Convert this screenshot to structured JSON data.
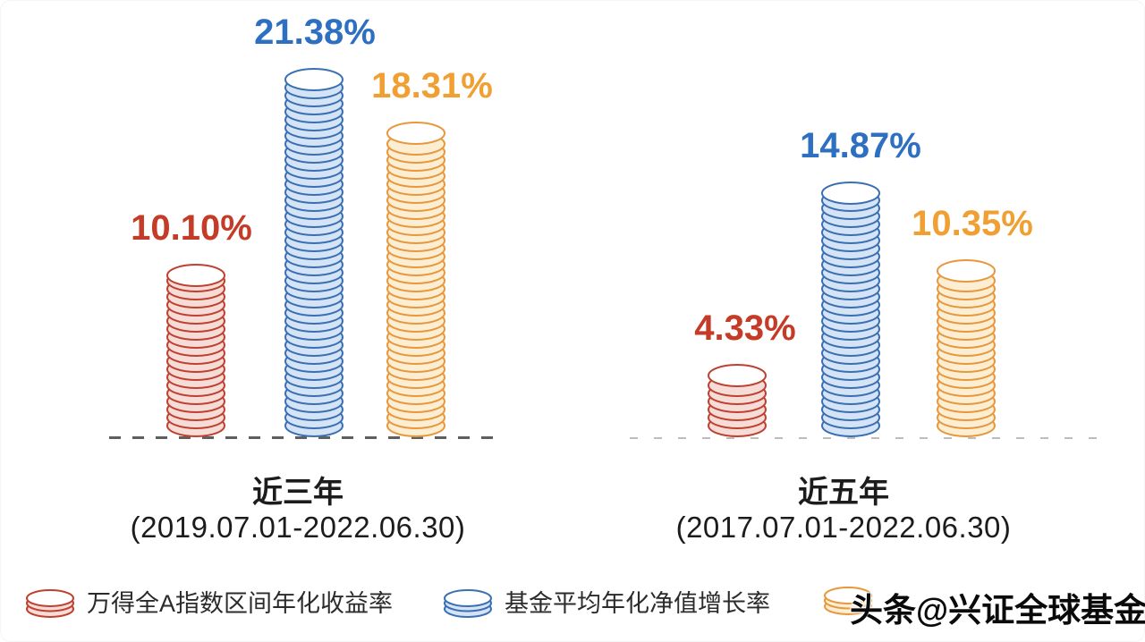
{
  "chart_data": {
    "type": "bar",
    "title": "",
    "unit": "%",
    "legend_position": "bottom",
    "baseline_style": "dashed",
    "grid": false,
    "groups": [
      {
        "label": "近三年",
        "period": "(2019.07.01-2022.06.30)",
        "bars": [
          {
            "series": "万得全A指数区间年化收益率",
            "value": 10.1,
            "display": "10.10%"
          },
          {
            "series": "基金平均年化净值增长率",
            "value": 21.38,
            "display": "21.38%"
          },
          {
            "series": "",
            "value": 18.31,
            "display": "18.31%"
          }
        ]
      },
      {
        "label": "近五年",
        "period": "(2017.07.01-2022.06.30)",
        "bars": [
          {
            "series": "万得全A指数区间年化收益率",
            "value": 4.33,
            "display": "4.33%"
          },
          {
            "series": "基金平均年化净值增长率",
            "value": 14.87,
            "display": "14.87%"
          },
          {
            "series": "",
            "value": 10.35,
            "display": "10.35%"
          }
        ]
      }
    ]
  },
  "legend": {
    "items": [
      {
        "icon": "coin-red-icon",
        "label": "万得全A指数区间年化收益率"
      },
      {
        "icon": "coin-blue-icon",
        "label": "基金平均年化净值增长率"
      },
      {
        "icon": "coin-orange-icon",
        "label": ""
      }
    ]
  },
  "watermark": {
    "text": "头条@兴证全球基金"
  },
  "colors": {
    "series": [
      {
        "stroke": "#bf4030",
        "fill": "#f6dcd6",
        "top_fill": "#ffffff",
        "text": "#c43b27"
      },
      {
        "stroke": "#3a6fb2",
        "fill": "#d4e3f5",
        "top_fill": "#ffffff",
        "text": "#2d6fc1"
      },
      {
        "stroke": "#e8973c",
        "fill": "#fceed2",
        "top_fill": "#ffffff",
        "text": "#f09f33"
      }
    ],
    "baseline_left": "#5f5f5f",
    "baseline_right": "#bdbdbd",
    "group_label_text": "#1c1c1c",
    "legend_text": "#2b2b2b"
  }
}
